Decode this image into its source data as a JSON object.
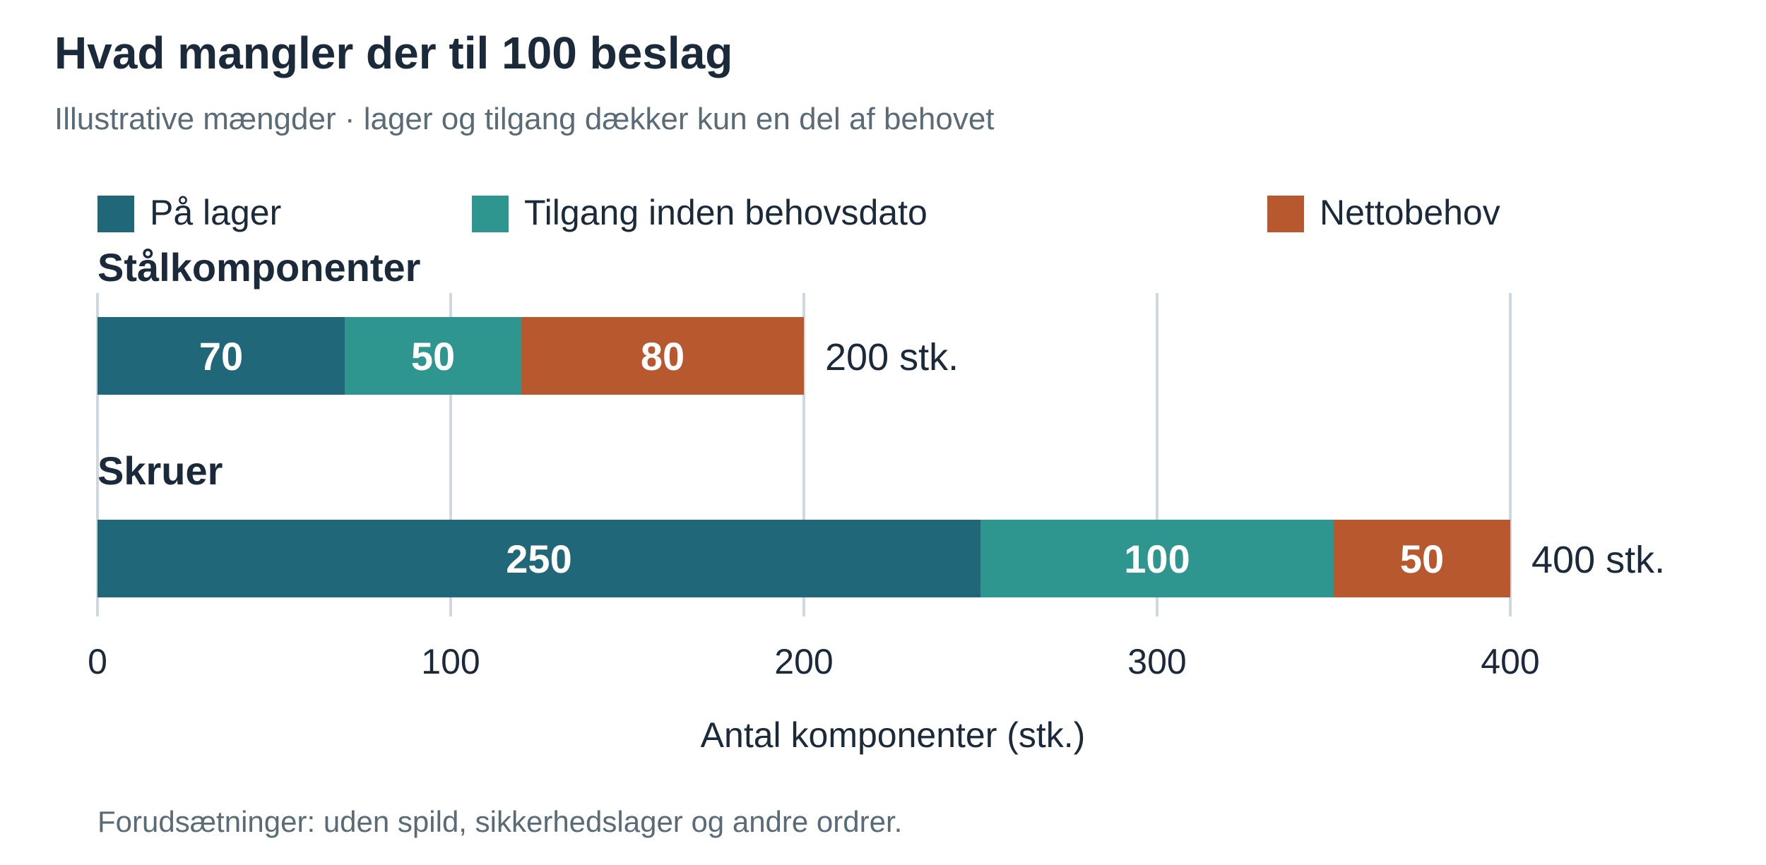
{
  "chart_data": {
    "type": "bar",
    "orientation": "horizontal",
    "stacked": true,
    "title": "Hvad mangler der til 100 beslag",
    "subtitle": "Illustrative mængder · lager og tilgang dækker kun en del af behovet",
    "xlabel": "Antal komponenter (stk.)",
    "ylabel": "",
    "xlim": [
      0,
      400
    ],
    "xticks": [
      0,
      100,
      200,
      300,
      400
    ],
    "grid": true,
    "legend_position": "top",
    "categories": [
      "Stålkomponenter",
      "Skruer"
    ],
    "series": [
      {
        "name": "På lager",
        "values": [
          70,
          250
        ],
        "color": "#21677a"
      },
      {
        "name": "Tilgang inden behovsdato",
        "values": [
          50,
          100
        ],
        "color": "#2e968e"
      },
      {
        "name": "Nettobehov",
        "values": [
          80,
          50
        ],
        "color": "#b8582f"
      }
    ],
    "totals": [
      "200 stk.",
      "400 stk."
    ],
    "footnote": "Forudsætninger: uden spild, sikkerhedslager og andre ordrer."
  },
  "colors": {
    "title": "#1b2a3a",
    "subtitle": "#5a6b78",
    "text": "#1b2a3a",
    "grid": "#cfd8de",
    "bar_label": "#ffffff"
  }
}
